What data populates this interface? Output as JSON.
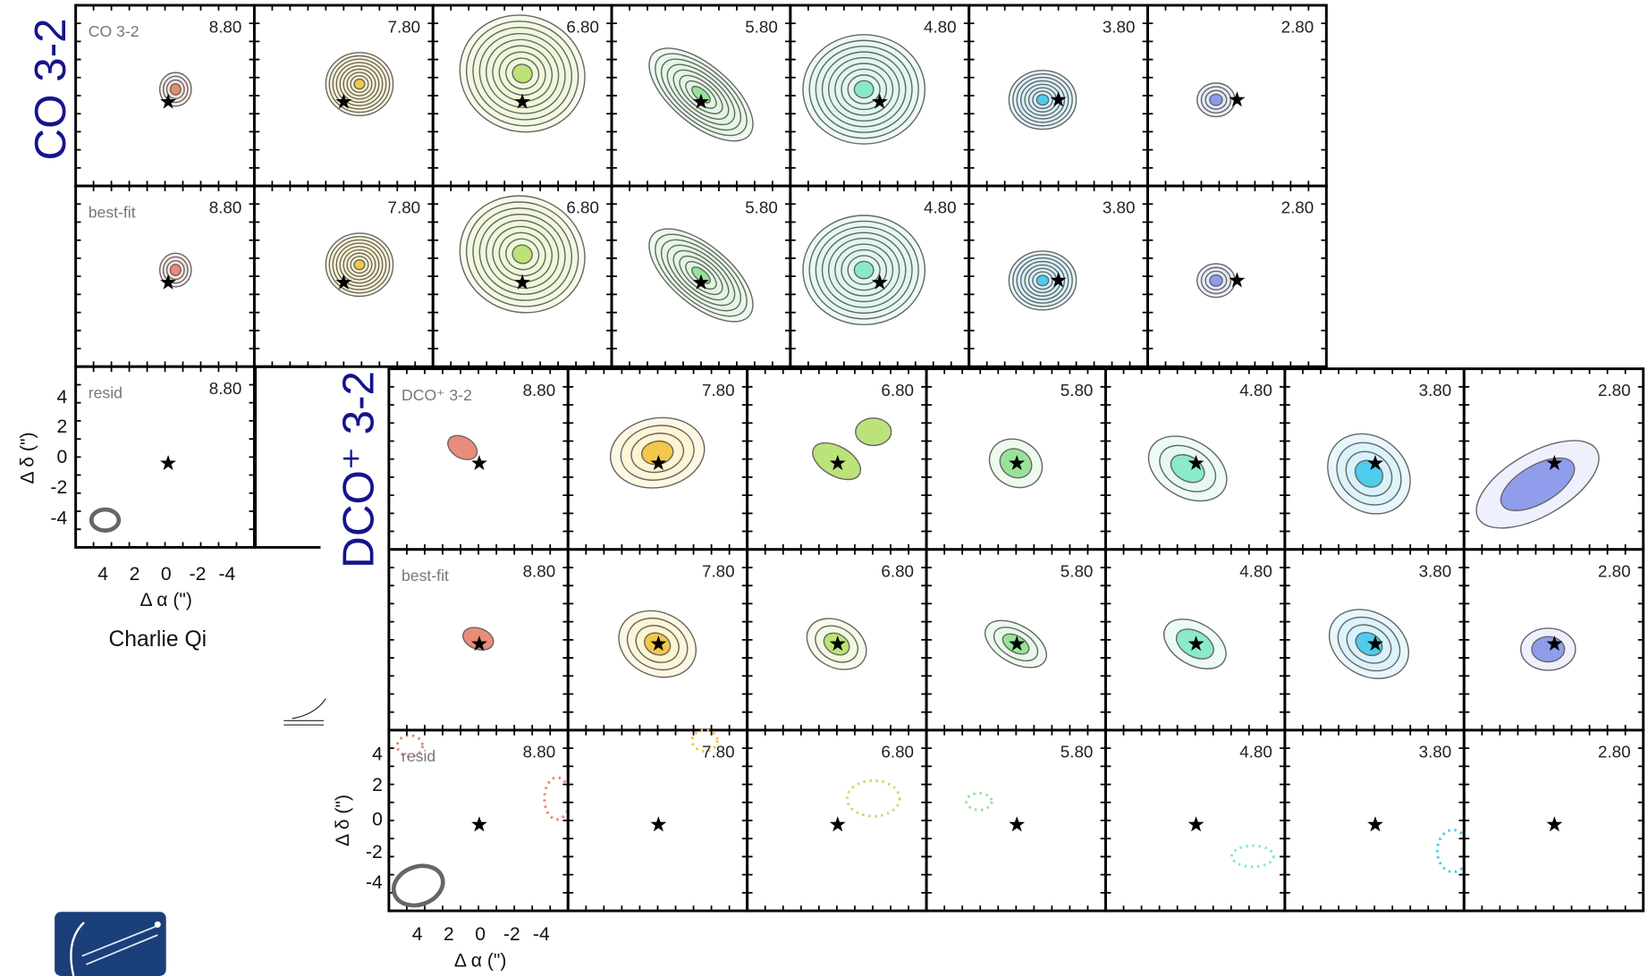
{
  "co_block": {
    "title": "CO 3-2",
    "rows": [
      "CO 3-2",
      "best-fit",
      "resid"
    ]
  },
  "dco_block": {
    "title": "DCO⁺ 3-2",
    "rows": [
      "DCO⁺ 3-2",
      "best-fit",
      "resid"
    ]
  },
  "velocities": [
    "8.80",
    "7.80",
    "6.80",
    "5.80",
    "4.80",
    "3.80",
    "2.80"
  ],
  "axes": {
    "ticks": [
      "4",
      "2",
      "0",
      "-2",
      "-4"
    ],
    "ylabel": "Δ δ (\")",
    "xlabel": "Δ α (\")"
  },
  "author": "Charlie Qi"
}
